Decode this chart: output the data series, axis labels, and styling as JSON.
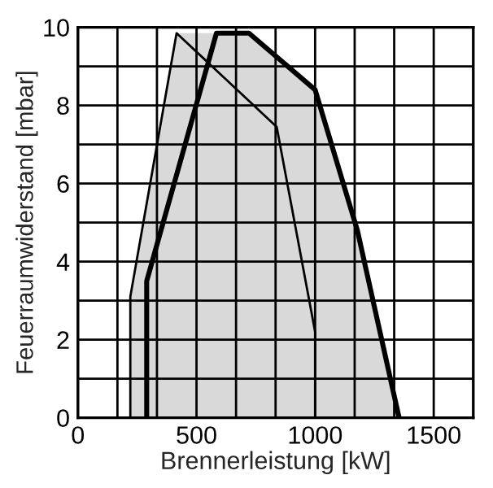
{
  "chart_data": {
    "type": "line",
    "xlabel": "Brennerleistung [kW]",
    "ylabel": "Feuerraumwiderstand [mbar]",
    "series": [
      {
        "type": "area",
        "color": "#d9d9d9",
        "x": [
          221,
          221,
          416,
          721,
          1000,
          1178,
          1354
        ],
        "values": [
          0,
          3.1,
          9.85,
          9.85,
          8.4,
          4.8,
          0
        ]
      },
      {
        "color": "#000000",
        "x": [
          221,
          221,
          416,
          838,
          1000,
          1000
        ],
        "values": [
          0,
          3.1,
          9.85,
          7.45,
          2.2,
          0
        ]
      },
      {
        "color": "#000000",
        "x": [
          290,
          290,
          584,
          721,
          1000,
          1178,
          1354
        ],
        "values": [
          0,
          3.5,
          9.85,
          9.85,
          8.4,
          4.8,
          0
        ]
      }
    ],
    "xlim": [
      0,
      1666.7
    ],
    "xticks": [
      0,
      {
        "value": 166.7,
        "label": null
      },
      {
        "value": 333.3,
        "label": null
      },
      {
        "value": 500,
        "label": "500"
      },
      {
        "value": 666.7,
        "label": null
      },
      {
        "value": 833.3,
        "label": null
      },
      1000,
      {
        "value": 1166.7,
        "label": null
      },
      {
        "value": 1333.3,
        "label": null
      },
      1500
    ],
    "ylim": [
      0,
      10
    ],
    "yticks": [
      0,
      {
        "value": 1,
        "label": null
      },
      2,
      {
        "value": 3,
        "label": null
      },
      4,
      {
        "value": 5,
        "label": null
      },
      6,
      {
        "value": 7,
        "label": null
      },
      8,
      {
        "value": 9,
        "label": null
      },
      10
    ],
    "grid": true,
    "line_style": "solid",
    "marker": "none"
  }
}
